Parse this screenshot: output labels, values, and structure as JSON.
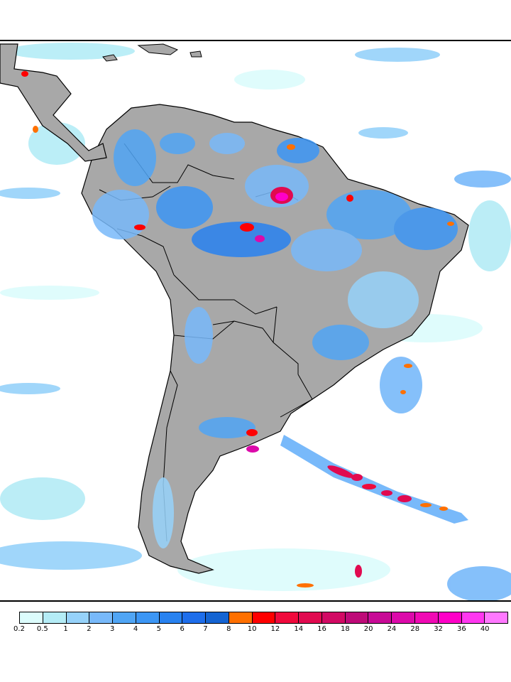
{
  "map": {
    "region": "South America",
    "land_color": "#a8a8a8",
    "ocean_color": "#ffffff",
    "border_color": "#000000"
  },
  "colorbar": {
    "bins": [
      {
        "label": "0.2",
        "color": "#dcfcfc"
      },
      {
        "label": "0.5",
        "color": "#b4ecf6"
      },
      {
        "label": "1",
        "color": "#96d2fa"
      },
      {
        "label": "2",
        "color": "#78b9fa"
      },
      {
        "label": "3",
        "color": "#50a5f5"
      },
      {
        "label": "4",
        "color": "#3c96f5"
      },
      {
        "label": "5",
        "color": "#2882f0"
      },
      {
        "label": "6",
        "color": "#1e6eeb"
      },
      {
        "label": "7",
        "color": "#1464d2"
      },
      {
        "label": "8",
        "color": "#ff7000"
      },
      {
        "label": "10",
        "color": "#ff0000"
      },
      {
        "label": "12",
        "color": "#f00a3c"
      },
      {
        "label": "14",
        "color": "#e10a50"
      },
      {
        "label": "16",
        "color": "#d20a64"
      },
      {
        "label": "18",
        "color": "#be0a78"
      },
      {
        "label": "20",
        "color": "#c80a96"
      },
      {
        "label": "24",
        "color": "#dc0aaa"
      },
      {
        "label": "28",
        "color": "#f00ab4"
      },
      {
        "label": "32",
        "color": "#ff00c8"
      },
      {
        "label": "36",
        "color": "#ff37f0"
      },
      {
        "label": "40",
        "color": "#ff78ff"
      }
    ]
  }
}
